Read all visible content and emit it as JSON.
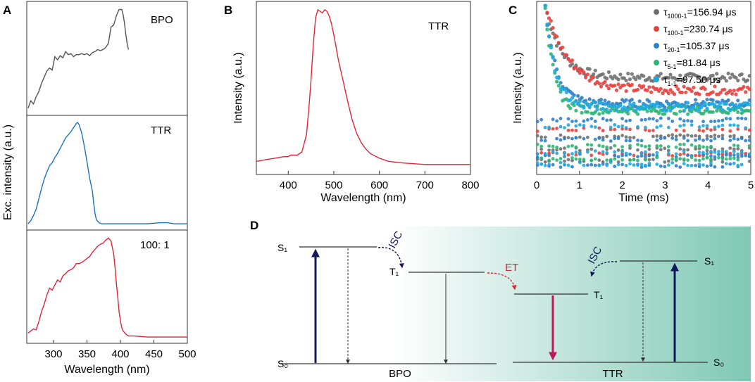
{
  "panel_letters": {
    "a": "A",
    "b": "B",
    "c": "C",
    "d": "D"
  },
  "chart_data": [
    {
      "id": "A",
      "type": "line",
      "title": "",
      "xlabel": "Wavelength (nm)",
      "ylabel": "Exc. intensity (a.u.)",
      "xlim": [
        260,
        500
      ],
      "xticks": [
        300,
        350,
        400,
        450,
        500
      ],
      "tick_labels": [
        "300",
        "350",
        "400",
        "450",
        "500"
      ],
      "subplots": [
        {
          "label": "BPO",
          "color": "#555555",
          "ylim": [
            0,
            1
          ],
          "x": [
            262,
            266,
            270,
            274,
            278,
            282,
            286,
            290,
            294,
            298,
            302,
            306,
            310,
            314,
            318,
            322,
            326,
            330,
            334,
            338,
            342,
            346,
            350,
            354,
            358,
            362,
            366,
            370,
            374,
            378,
            382,
            386,
            390,
            394,
            398,
            402,
            404,
            406,
            408,
            410,
            412
          ],
          "y": [
            0.03,
            0.1,
            0.07,
            0.14,
            0.19,
            0.27,
            0.33,
            0.39,
            0.42,
            0.4,
            0.53,
            0.5,
            0.54,
            0.52,
            0.58,
            0.55,
            0.56,
            0.53,
            0.55,
            0.55,
            0.56,
            0.55,
            0.56,
            0.54,
            0.57,
            0.58,
            0.6,
            0.59,
            0.6,
            0.62,
            0.66,
            0.82,
            0.84,
            0.93,
            0.99,
            0.99,
            0.94,
            0.86,
            0.75,
            0.66,
            0.6
          ]
        },
        {
          "label": "TTR",
          "color": "#1a73c4",
          "ylim": [
            0,
            1
          ],
          "x": [
            262,
            266,
            270,
            274,
            278,
            282,
            286,
            290,
            294,
            298,
            302,
            306,
            310,
            314,
            318,
            322,
            326,
            330,
            334,
            336,
            338,
            342,
            346,
            350,
            354,
            358,
            360,
            362,
            364,
            368,
            372,
            380,
            400,
            420,
            440,
            460,
            470,
            480,
            500
          ],
          "y": [
            0.02,
            0.05,
            0.1,
            0.16,
            0.26,
            0.36,
            0.45,
            0.52,
            0.58,
            0.61,
            0.66,
            0.7,
            0.75,
            0.8,
            0.85,
            0.88,
            0.91,
            0.95,
            0.99,
            1.0,
            0.98,
            0.9,
            0.77,
            0.62,
            0.46,
            0.34,
            0.22,
            0.12,
            0.06,
            0.03,
            0.02,
            0.02,
            0.02,
            0.02,
            0.02,
            0.03,
            0.03,
            0.02,
            0.02
          ]
        },
        {
          "label": "100: 1",
          "color": "#e0243a",
          "ylim": [
            0,
            1
          ],
          "x": [
            262,
            266,
            270,
            274,
            278,
            282,
            286,
            290,
            294,
            298,
            302,
            306,
            310,
            314,
            318,
            322,
            326,
            330,
            334,
            338,
            342,
            346,
            350,
            354,
            358,
            362,
            366,
            370,
            374,
            378,
            382,
            386,
            390,
            392,
            394,
            396,
            398,
            400,
            402,
            404,
            408,
            412,
            420,
            440,
            460,
            480,
            500
          ],
          "y": [
            0.06,
            0.08,
            0.1,
            0.09,
            0.17,
            0.27,
            0.34,
            0.43,
            0.5,
            0.48,
            0.53,
            0.58,
            0.56,
            0.62,
            0.64,
            0.67,
            0.68,
            0.7,
            0.74,
            0.74,
            0.75,
            0.77,
            0.79,
            0.81,
            0.85,
            0.88,
            0.91,
            0.93,
            0.94,
            0.97,
            0.99,
            0.96,
            0.83,
            0.7,
            0.54,
            0.41,
            0.27,
            0.18,
            0.11,
            0.08,
            0.05,
            0.03,
            0.03,
            0.02,
            0.02,
            0.02,
            0.02
          ]
        }
      ]
    },
    {
      "id": "B",
      "type": "line",
      "title": "",
      "legend": "TTR",
      "xlabel": "Wavelength (nm)",
      "ylabel": "Intensity (a.u.)",
      "xlim": [
        330,
        800
      ],
      "ylim": [
        0,
        1
      ],
      "xticks": [
        400,
        500,
        600,
        700,
        800
      ],
      "tick_labels": [
        "400",
        "500",
        "600",
        "700",
        "800"
      ],
      "color": "#e0243a",
      "x": [
        330,
        350,
        370,
        390,
        400,
        405,
        410,
        420,
        430,
        440,
        445,
        450,
        455,
        460,
        465,
        470,
        475,
        480,
        485,
        490,
        495,
        500,
        505,
        510,
        520,
        530,
        540,
        550,
        560,
        570,
        580,
        600,
        620,
        650,
        700,
        750,
        800
      ],
      "y": [
        0.03,
        0.04,
        0.05,
        0.06,
        0.06,
        0.07,
        0.07,
        0.07,
        0.09,
        0.2,
        0.36,
        0.55,
        0.78,
        0.95,
        1.0,
        0.99,
        0.98,
        1.0,
        0.99,
        0.96,
        0.91,
        0.84,
        0.76,
        0.68,
        0.55,
        0.42,
        0.3,
        0.21,
        0.15,
        0.11,
        0.08,
        0.05,
        0.03,
        0.02,
        0.01,
        0.01,
        0.01
      ]
    },
    {
      "id": "C",
      "type": "scatter",
      "title": "",
      "xlabel": "Time (ms)",
      "ylabel": "Intensity (a.u.)",
      "xlim": [
        0,
        5
      ],
      "ylim": [
        0,
        1
      ],
      "xticks": [
        0,
        1,
        2,
        3,
        4,
        5
      ],
      "tick_labels": [
        "0",
        "1",
        "2",
        "3",
        "4",
        "5"
      ],
      "series": [
        {
          "name": "1000-1",
          "value": "=156.94 μs",
          "tau_us": 156.94,
          "color": "#707070"
        },
        {
          "name": "100-1",
          "value": "=230.74 μs",
          "tau_us": 230.74,
          "color": "#e8413d"
        },
        {
          "name": "20-1",
          "value": "=105.37 μs",
          "tau_us": 105.37,
          "color": "#2e80c8"
        },
        {
          "name": "5-1",
          "value": "=81.84 μs",
          "tau_us": 81.84,
          "color": "#2bb673"
        },
        {
          "name": "1-1",
          "value": "=97.50 μs",
          "tau_us": 97.5,
          "color": "#1ea8e0"
        }
      ]
    }
  ],
  "energy_diagram": {
    "bpo_label": "BPO",
    "ttr_label": "TTR",
    "s1_left": "S₁",
    "t1_left": "T₁",
    "s0_left": "S₀",
    "s1_right": "S₁",
    "t1_right": "T₁",
    "s0_right": "S₀",
    "isc_left": "ISC",
    "isc_right": "ISC",
    "et_label": "ET",
    "colors": {
      "absorption": "#12185e",
      "et": "#d9263a",
      "emission": "#c0185a",
      "gradient_end": "#7fc8b4"
    }
  }
}
